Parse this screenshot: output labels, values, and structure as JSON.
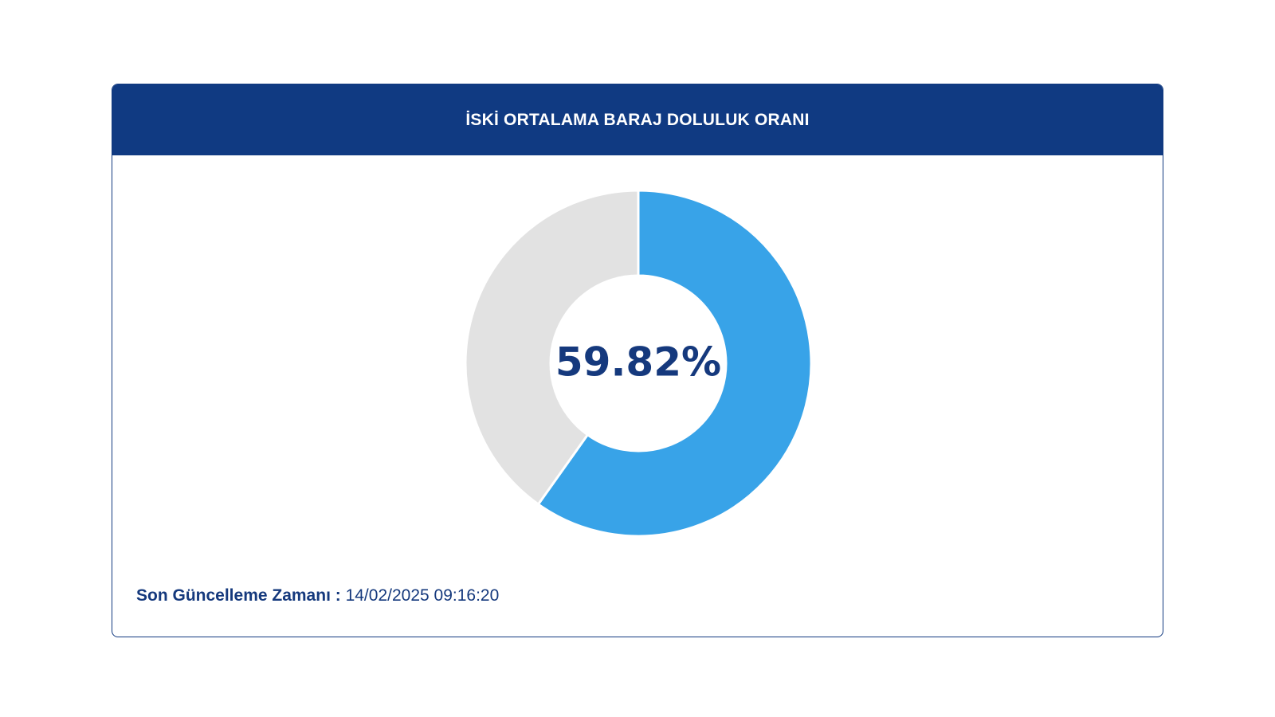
{
  "header": {
    "title": "İSKİ ORTALAMA BARAJ DOLULUK ORANI"
  },
  "chart_data": {
    "type": "pie",
    "values": [
      59.82,
      40.18
    ],
    "colors": [
      "#38a3e8",
      "#e2e2e2"
    ],
    "center_label": "59.82%",
    "start_angle": "top, clockwise"
  },
  "footer": {
    "label": "Son Güncelleme Zamanı :",
    "value": "14/02/2025 09:16:20"
  }
}
